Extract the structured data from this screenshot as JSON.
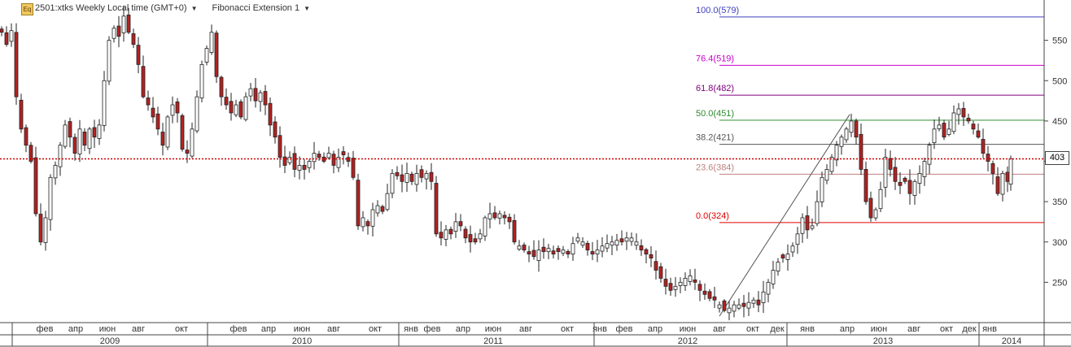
{
  "toolbar": {
    "icon_label": "Eq",
    "title": "2501:xtks Weekly Local time (GMT+0)",
    "indicator": "Fibonacci Extension 1",
    "dropdown_icon": "caret-down-icon"
  },
  "current_price_label": "403",
  "colors": {
    "bull_fill": "#ffffff",
    "bear_fill": "#b22222",
    "candle_outline": "#222222",
    "current_line": "#cc0000",
    "trend_line": "#555555"
  },
  "fibonacci": [
    {
      "label": "100.0(579)",
      "price": 579,
      "color": "#4040c0"
    },
    {
      "label": "76.4(519)",
      "price": 519,
      "color": "#cc00cc"
    },
    {
      "label": "61.8(482)",
      "price": 482,
      "color": "#800080"
    },
    {
      "label": "50.0(451)",
      "price": 451,
      "color": "#2e8b2e"
    },
    {
      "label": "38.2(421)",
      "price": 421,
      "color": "#555555"
    },
    {
      "label": "23.6(384)",
      "price": 384,
      "color": "#c08080"
    },
    {
      "label": "0.0(324)",
      "price": 324,
      "color": "#e00000"
    }
  ],
  "chart_data": {
    "type": "candlestick",
    "title": "2501:xtks Weekly Local time (GMT+0)",
    "y_ticks": [
      250,
      300,
      350,
      400,
      450,
      500,
      550
    ],
    "ylim": [
      200,
      600
    ],
    "current_price": 403,
    "months": [
      {
        "label": "фев",
        "x": 55
      },
      {
        "label": "апр",
        "x": 93
      },
      {
        "label": "июн",
        "x": 132
      },
      {
        "label": "авг",
        "x": 170
      },
      {
        "label": "окт",
        "x": 223
      },
      {
        "label": "фев",
        "x": 293
      },
      {
        "label": "апр",
        "x": 330
      },
      {
        "label": "июн",
        "x": 371
      },
      {
        "label": "авг",
        "x": 410
      },
      {
        "label": "окт",
        "x": 461
      },
      {
        "label": "янв",
        "x": 505
      },
      {
        "label": "фев",
        "x": 531
      },
      {
        "label": "апр",
        "x": 569
      },
      {
        "label": "июн",
        "x": 606
      },
      {
        "label": "авг",
        "x": 646
      },
      {
        "label": "окт",
        "x": 697
      },
      {
        "label": "янв",
        "x": 737
      },
      {
        "label": "фев",
        "x": 767
      },
      {
        "label": "апр",
        "x": 805
      },
      {
        "label": "июн",
        "x": 845
      },
      {
        "label": "авг",
        "x": 884
      },
      {
        "label": "окт",
        "x": 925
      },
      {
        "label": "дек",
        "x": 955
      },
      {
        "label": "янв",
        "x": 992
      },
      {
        "label": "апр",
        "x": 1041
      },
      {
        "label": "июн",
        "x": 1080
      },
      {
        "label": "авг",
        "x": 1123
      },
      {
        "label": "окт",
        "x": 1163
      },
      {
        "label": "дек",
        "x": 1191
      },
      {
        "label": "янв",
        "x": 1216
      }
    ],
    "years": [
      {
        "label": "2009",
        "x": 135
      },
      {
        "label": "2010",
        "x": 371
      },
      {
        "label": "2011",
        "x": 606
      },
      {
        "label": "2012",
        "x": 845
      },
      {
        "label": "2013",
        "x": 1085
      },
      {
        "label": "2014",
        "x": 1243
      }
    ],
    "close_path": [
      [
        0,
        560
      ],
      [
        6,
        545
      ],
      [
        12,
        562
      ],
      [
        18,
        480
      ],
      [
        24,
        440
      ],
      [
        30,
        420
      ],
      [
        36,
        400
      ],
      [
        42,
        335
      ],
      [
        48,
        300
      ],
      [
        54,
        330
      ],
      [
        60,
        380
      ],
      [
        66,
        395
      ],
      [
        72,
        420
      ],
      [
        78,
        445
      ],
      [
        84,
        430
      ],
      [
        90,
        410
      ],
      [
        96,
        440
      ],
      [
        102,
        420
      ],
      [
        108,
        440
      ],
      [
        114,
        430
      ],
      [
        120,
        445
      ],
      [
        126,
        500
      ],
      [
        132,
        550
      ],
      [
        138,
        565
      ],
      [
        144,
        555
      ],
      [
        150,
        580
      ],
      [
        156,
        560
      ],
      [
        162,
        545
      ],
      [
        168,
        520
      ],
      [
        174,
        480
      ],
      [
        180,
        470
      ],
      [
        186,
        455
      ],
      [
        192,
        440
      ],
      [
        198,
        420
      ],
      [
        204,
        455
      ],
      [
        210,
        470
      ],
      [
        216,
        460
      ],
      [
        222,
        415
      ],
      [
        228,
        410
      ],
      [
        234,
        440
      ],
      [
        240,
        480
      ],
      [
        246,
        520
      ],
      [
        252,
        540
      ],
      [
        258,
        560
      ],
      [
        264,
        505
      ],
      [
        270,
        480
      ],
      [
        276,
        470
      ],
      [
        282,
        460
      ],
      [
        288,
        470
      ],
      [
        294,
        455
      ],
      [
        300,
        480
      ],
      [
        306,
        490
      ],
      [
        312,
        475
      ],
      [
        318,
        485
      ],
      [
        324,
        470
      ],
      [
        330,
        445
      ],
      [
        336,
        430
      ],
      [
        342,
        405
      ],
      [
        348,
        395
      ],
      [
        354,
        405
      ],
      [
        360,
        390
      ],
      [
        366,
        395
      ],
      [
        372,
        390
      ],
      [
        378,
        400
      ],
      [
        384,
        410
      ],
      [
        390,
        405
      ],
      [
        396,
        400
      ],
      [
        402,
        410
      ],
      [
        408,
        395
      ],
      [
        414,
        405
      ],
      [
        420,
        408
      ],
      [
        426,
        400
      ],
      [
        432,
        380
      ],
      [
        438,
        320
      ],
      [
        444,
        330
      ],
      [
        450,
        320
      ],
      [
        456,
        340
      ],
      [
        462,
        345
      ],
      [
        468,
        338
      ],
      [
        474,
        360
      ],
      [
        480,
        385
      ],
      [
        486,
        382
      ],
      [
        492,
        375
      ],
      [
        498,
        385
      ],
      [
        504,
        375
      ],
      [
        510,
        385
      ],
      [
        516,
        380
      ],
      [
        522,
        385
      ],
      [
        528,
        375
      ],
      [
        534,
        310
      ],
      [
        540,
        305
      ],
      [
        546,
        315
      ],
      [
        552,
        310
      ],
      [
        558,
        325
      ],
      [
        564,
        320
      ],
      [
        570,
        305
      ],
      [
        576,
        300
      ],
      [
        582,
        300
      ],
      [
        588,
        310
      ],
      [
        594,
        330
      ],
      [
        600,
        335
      ],
      [
        606,
        330
      ],
      [
        612,
        335
      ],
      [
        618,
        330
      ],
      [
        624,
        325
      ],
      [
        630,
        300
      ],
      [
        636,
        295
      ],
      [
        642,
        290
      ],
      [
        648,
        285
      ],
      [
        654,
        282
      ],
      [
        660,
        290
      ],
      [
        666,
        288
      ],
      [
        672,
        292
      ],
      [
        678,
        285
      ],
      [
        684,
        288
      ],
      [
        690,
        290
      ],
      [
        696,
        285
      ],
      [
        702,
        298
      ],
      [
        708,
        305
      ],
      [
        714,
        300
      ],
      [
        720,
        290
      ],
      [
        726,
        285
      ],
      [
        732,
        290
      ],
      [
        738,
        295
      ],
      [
        744,
        298
      ],
      [
        750,
        300
      ],
      [
        756,
        302
      ],
      [
        762,
        300
      ],
      [
        768,
        305
      ],
      [
        774,
        305
      ],
      [
        780,
        300
      ],
      [
        786,
        290
      ],
      [
        792,
        285
      ],
      [
        798,
        280
      ],
      [
        804,
        265
      ],
      [
        810,
        255
      ],
      [
        816,
        245
      ],
      [
        822,
        240
      ],
      [
        828,
        245
      ],
      [
        834,
        250
      ],
      [
        840,
        255
      ],
      [
        846,
        258
      ],
      [
        852,
        250
      ],
      [
        858,
        240
      ],
      [
        864,
        235
      ],
      [
        870,
        230
      ],
      [
        876,
        228
      ],
      [
        882,
        222
      ],
      [
        888,
        215
      ],
      [
        894,
        218
      ],
      [
        900,
        222
      ],
      [
        906,
        222
      ],
      [
        912,
        220
      ],
      [
        918,
        225
      ],
      [
        924,
        228
      ],
      [
        930,
        222
      ],
      [
        936,
        238
      ],
      [
        942,
        250
      ],
      [
        948,
        265
      ],
      [
        954,
        275
      ],
      [
        960,
        280
      ],
      [
        966,
        285
      ],
      [
        972,
        295
      ],
      [
        978,
        310
      ],
      [
        984,
        330
      ],
      [
        990,
        315
      ],
      [
        996,
        320
      ],
      [
        1002,
        350
      ],
      [
        1008,
        380
      ],
      [
        1014,
        390
      ],
      [
        1020,
        405
      ],
      [
        1026,
        420
      ],
      [
        1032,
        430
      ],
      [
        1038,
        440
      ],
      [
        1044,
        450
      ],
      [
        1050,
        430
      ],
      [
        1056,
        390
      ],
      [
        1062,
        350
      ],
      [
        1068,
        330
      ],
      [
        1074,
        340
      ],
      [
        1080,
        365
      ],
      [
        1086,
        405
      ],
      [
        1092,
        390
      ],
      [
        1098,
        375
      ],
      [
        1104,
        370
      ],
      [
        1110,
        375
      ],
      [
        1116,
        360
      ],
      [
        1122,
        375
      ],
      [
        1128,
        385
      ],
      [
        1134,
        400
      ],
      [
        1140,
        420
      ],
      [
        1146,
        440
      ],
      [
        1152,
        445
      ],
      [
        1158,
        430
      ],
      [
        1164,
        440
      ],
      [
        1170,
        460
      ],
      [
        1176,
        465
      ],
      [
        1182,
        455
      ],
      [
        1188,
        450
      ],
      [
        1194,
        440
      ],
      [
        1200,
        430
      ],
      [
        1206,
        410
      ],
      [
        1212,
        400
      ],
      [
        1218,
        385
      ],
      [
        1224,
        360
      ],
      [
        1230,
        385
      ],
      [
        1236,
        375
      ],
      [
        1240,
        403
      ]
    ]
  }
}
